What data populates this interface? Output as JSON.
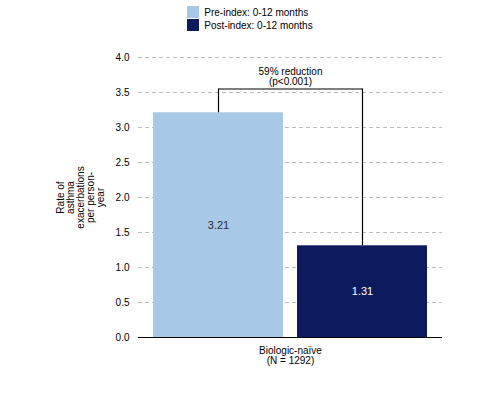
{
  "chart_data": {
    "type": "bar",
    "categories": [
      "Biologic-naïve\n(N = 1292)"
    ],
    "series": [
      {
        "name": "Pre-index: 0-12 months",
        "color": "#a8c8e8",
        "values": [
          3.21
        ]
      },
      {
        "name": "Post-index: 0-12 months",
        "color": "#0d1b5e",
        "values": [
          1.31
        ]
      }
    ],
    "ylabel": "Rate of\nasthma\nexacerbations\nper person-\nyear",
    "ylim": [
      0,
      4.0
    ],
    "yticks": [
      {
        "value": 0,
        "label": "0.0"
      },
      0.5,
      {
        "value": 1,
        "label": "1.0"
      },
      1.5,
      {
        "value": 2,
        "label": "2.0"
      },
      2.5,
      {
        "value": 3,
        "label": "3.0"
      },
      3.5,
      {
        "value": 4,
        "label": "4.0"
      }
    ],
    "annotation": "59% reduction\n(p<0.001)",
    "grid": true,
    "legend": "top",
    "data_labels": true
  }
}
